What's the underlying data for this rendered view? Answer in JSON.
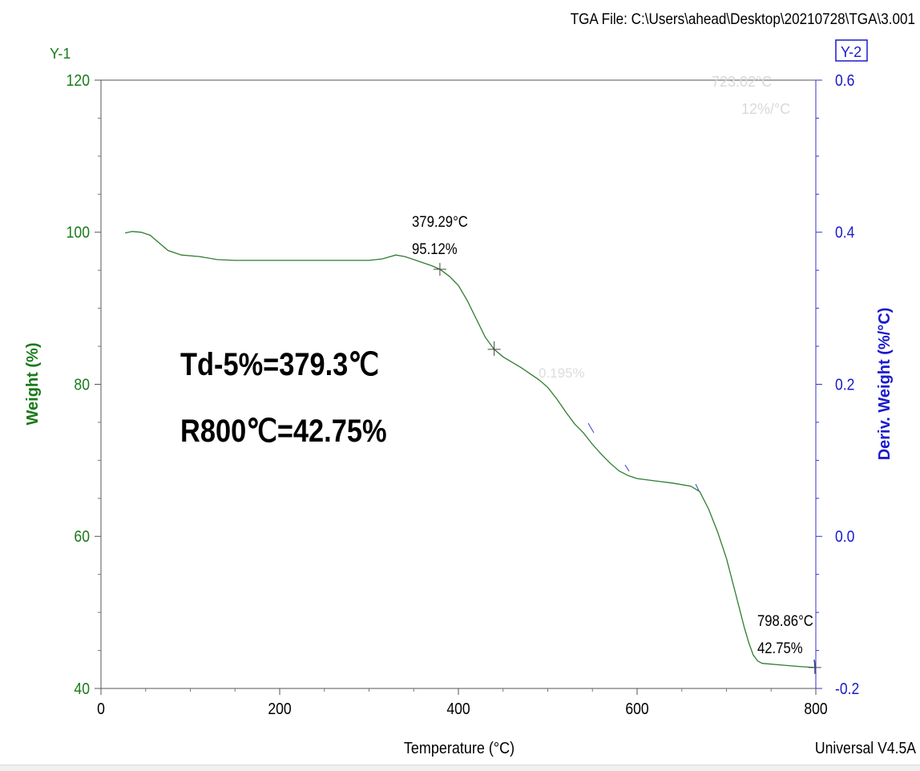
{
  "header": {
    "file_label": "TGA File: C:\\Users\\ahead\\Desktop\\20210728\\TGA\\3.001",
    "y1_tag": "Y-1",
    "y2_tag": "Y-2",
    "software_version": "Universal V4.5A"
  },
  "colors": {
    "left_axis": "#1a7a1a",
    "right_axis": "#1a1acc",
    "curve": "#2e7d2e",
    "text": "#000000"
  },
  "chart_data": {
    "type": "line",
    "xlabel": "Temperature (°C)",
    "ylabel": "Weight (%)",
    "y2label": "Deriv. Weight (%/°C)",
    "xlim": [
      0,
      800
    ],
    "ylim": [
      40,
      120
    ],
    "y2lim": [
      -0.2,
      0.6
    ],
    "x_ticks": [
      "0",
      "200",
      "400",
      "600",
      "800"
    ],
    "y_ticks": [
      "40",
      "60",
      "80",
      "100",
      "120"
    ],
    "y2_ticks": [
      "-0.2",
      "0.0",
      "0.2",
      "0.4",
      "0.6"
    ],
    "series": [
      {
        "name": "Weight",
        "x": [
          27,
          35,
          45,
          55,
          65,
          75,
          90,
          110,
          130,
          150,
          200,
          250,
          300,
          315,
          330,
          340,
          355,
          370,
          379.29,
          390,
          400,
          410,
          420,
          430,
          440,
          450,
          470,
          490,
          500,
          510,
          520,
          530,
          540,
          550,
          560,
          570,
          580,
          590,
          600,
          620,
          640,
          660,
          670,
          680,
          690,
          700,
          710,
          720,
          725,
          730,
          735,
          740,
          760,
          780,
          798.86
        ],
        "y": [
          99.9,
          100.1,
          100.0,
          99.6,
          98.6,
          97.6,
          97.0,
          96.8,
          96.4,
          96.3,
          96.3,
          96.3,
          96.3,
          96.5,
          97.0,
          96.8,
          96.2,
          95.6,
          95.12,
          94.2,
          93.0,
          91.0,
          88.6,
          86.2,
          84.6,
          83.6,
          82.2,
          80.6,
          79.6,
          78.1,
          76.4,
          74.8,
          73.6,
          72.1,
          70.8,
          69.6,
          68.6,
          68.0,
          67.6,
          67.3,
          67.0,
          66.6,
          65.9,
          63.6,
          60.6,
          57.1,
          52.6,
          48.0,
          46.0,
          44.4,
          43.6,
          43.3,
          43.1,
          42.9,
          42.75
        ]
      }
    ],
    "annotations": [
      {
        "x": 379.29,
        "y": 95.12,
        "label_temp": "379.29°C",
        "label_value": "95.12%"
      },
      {
        "x": 798.86,
        "y": 42.75,
        "label_temp": "798.86°C",
        "label_value": "42.75%"
      }
    ],
    "faint_labels": [
      "723.02°C",
      "12%/°C",
      "0.195%"
    ],
    "notes": [
      "Td-5%=379.3℃",
      "R800℃=42.75%"
    ],
    "grid": false
  }
}
